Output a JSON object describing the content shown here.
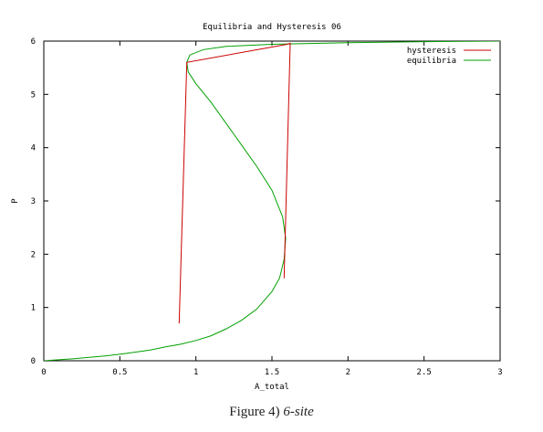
{
  "chart_data": {
    "type": "line",
    "title": "Equilibria and Hysteresis 06",
    "xlabel": "A_total",
    "ylabel": "P",
    "xlim": [
      0,
      3
    ],
    "ylim": [
      0,
      6
    ],
    "xticks": [
      "0",
      "0.5",
      "1",
      "1.5",
      "2",
      "2.5",
      "3"
    ],
    "xtick_values": [
      0,
      0.5,
      1,
      1.5,
      2,
      2.5,
      3
    ],
    "yticks": [
      "0",
      "1",
      "2",
      "3",
      "4",
      "5",
      "6"
    ],
    "ytick_values": [
      0,
      1,
      2,
      3,
      4,
      5,
      6
    ],
    "grid": false,
    "legend_position": "top-right",
    "series": [
      {
        "name": "hysteresis",
        "color": "#cc0000",
        "points": [
          [
            0.89,
            0.7
          ],
          [
            0.94,
            5.6
          ],
          [
            1.6,
            5.94
          ],
          [
            1.62,
            5.96
          ],
          [
            1.58,
            1.55
          ]
        ]
      },
      {
        "name": "equilibria",
        "color": "#00a000",
        "points": [
          [
            0,
            0
          ],
          [
            0.2,
            0.04
          ],
          [
            0.4,
            0.09
          ],
          [
            0.55,
            0.14
          ],
          [
            0.7,
            0.2
          ],
          [
            0.8,
            0.26
          ],
          [
            0.9,
            0.31
          ],
          [
            1.0,
            0.38
          ],
          [
            1.1,
            0.47
          ],
          [
            1.2,
            0.6
          ],
          [
            1.3,
            0.76
          ],
          [
            1.4,
            0.97
          ],
          [
            1.5,
            1.3
          ],
          [
            1.55,
            1.55
          ],
          [
            1.58,
            1.9
          ],
          [
            1.59,
            2.3
          ],
          [
            1.57,
            2.7
          ],
          [
            1.5,
            3.2
          ],
          [
            1.4,
            3.65
          ],
          [
            1.3,
            4.05
          ],
          [
            1.2,
            4.45
          ],
          [
            1.1,
            4.85
          ],
          [
            1.0,
            5.2
          ],
          [
            0.95,
            5.42
          ],
          [
            0.94,
            5.6
          ],
          [
            0.96,
            5.74
          ],
          [
            1.05,
            5.84
          ],
          [
            1.2,
            5.9
          ],
          [
            1.5,
            5.94
          ],
          [
            2.0,
            5.97
          ],
          [
            2.5,
            5.99
          ],
          [
            3.0,
            6.0
          ]
        ]
      }
    ]
  },
  "caption": {
    "label": "Figure 4)",
    "sub": "6-site"
  }
}
